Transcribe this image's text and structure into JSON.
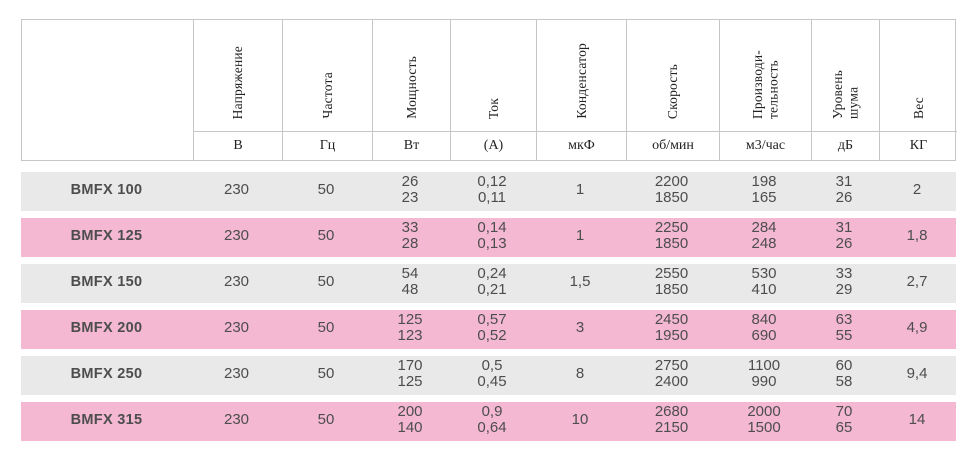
{
  "colors": {
    "row_gray": "#e9e9e9",
    "row_pink": "#f4b8d2",
    "border": "#c6c6c6",
    "data_text": "#4d4d4d",
    "header_text": "#222222"
  },
  "chart_data": {
    "type": "table",
    "columns": [
      {
        "label": "",
        "unit": ""
      },
      {
        "label": "Напряжение",
        "unit": "В"
      },
      {
        "label": "Частота",
        "unit": "Гц"
      },
      {
        "label": "Мощность",
        "unit": "Вт"
      },
      {
        "label": "Ток",
        "unit": "(А)"
      },
      {
        "label": "Конденсатор",
        "unit": "мкФ"
      },
      {
        "label": "Скорость",
        "unit": "об/мин"
      },
      {
        "label": "Производи-\nтельность",
        "unit": "м3/час"
      },
      {
        "label": "Уровень\nшума",
        "unit": "дБ"
      },
      {
        "label": "Вес",
        "unit": "КГ"
      }
    ],
    "rows": [
      {
        "model": "BMFX 100",
        "values": [
          "230",
          "50",
          "26\n23",
          "0,12\n0,11",
          "1",
          "2200\n1850",
          "198\n165",
          "31\n26",
          "2"
        ]
      },
      {
        "model": "BMFX 125",
        "values": [
          "230",
          "50",
          "33\n28",
          "0,14\n0,13",
          "1",
          "2250\n1850",
          "284\n248",
          "31\n26",
          "1,8"
        ]
      },
      {
        "model": "BMFX 150",
        "values": [
          "230",
          "50",
          "54\n48",
          "0,24\n0,21",
          "1,5",
          "2550\n1850",
          "530\n410",
          "33\n29",
          "2,7"
        ]
      },
      {
        "model": "BMFX 200",
        "values": [
          "230",
          "50",
          "125\n123",
          "0,57\n0,52",
          "3",
          "2450\n1950",
          "840\n690",
          "63\n55",
          "4,9"
        ]
      },
      {
        "model": "BMFX 250",
        "values": [
          "230",
          "50",
          "170\n125",
          "0,5\n0,45",
          "8",
          "2750\n2400",
          "1100\n990",
          "60\n58",
          "9,4"
        ]
      },
      {
        "model": "BMFX 315",
        "values": [
          "230",
          "50",
          "200\n140",
          "0,9\n0,64",
          "10",
          "2680\n2150",
          "2000\n1500",
          "70\n65",
          "14"
        ]
      }
    ]
  }
}
